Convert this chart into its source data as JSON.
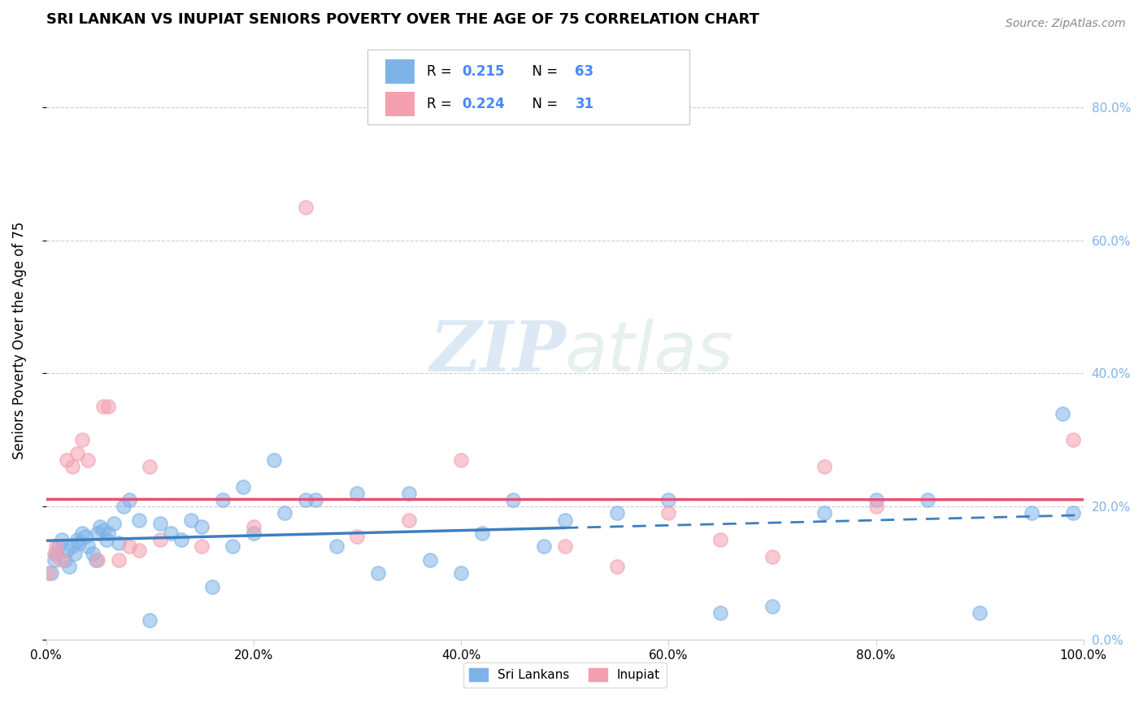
{
  "title": "SRI LANKAN VS INUPIAT SENIORS POVERTY OVER THE AGE OF 75 CORRELATION CHART",
  "source": "Source: ZipAtlas.com",
  "ylabel": "Seniors Poverty Over the Age of 75",
  "watermark_zip": "ZIP",
  "watermark_atlas": "atlas",
  "sri_lankan_R": 0.215,
  "sri_lankan_N": 63,
  "inupiat_R": 0.224,
  "inupiat_N": 31,
  "sri_lankan_color": "#7EB3E8",
  "inupiat_color": "#F4A0B0",
  "trend_sri_lankan_color": "#3E7EC0",
  "trend_inupiat_color": "#E85070",
  "stat_color": "#4488FF",
  "background_color": "#ffffff",
  "sri_lankan_x": [
    0.5,
    0.8,
    1.0,
    1.2,
    1.5,
    1.8,
    2.0,
    2.2,
    2.5,
    2.8,
    3.0,
    3.2,
    3.5,
    3.8,
    4.0,
    4.5,
    4.8,
    5.0,
    5.2,
    5.5,
    5.8,
    6.0,
    6.5,
    7.0,
    7.5,
    8.0,
    9.0,
    10.0,
    11.0,
    12.0,
    13.0,
    14.0,
    15.0,
    16.0,
    17.0,
    18.0,
    19.0,
    20.0,
    22.0,
    23.0,
    25.0,
    26.0,
    28.0,
    30.0,
    32.0,
    35.0,
    37.0,
    40.0,
    42.0,
    45.0,
    48.0,
    50.0,
    55.0,
    60.0,
    65.0,
    70.0,
    75.0,
    80.0,
    85.0,
    90.0,
    95.0,
    98.0,
    99.0
  ],
  "sri_lankan_y": [
    10.0,
    12.0,
    13.0,
    14.0,
    15.0,
    12.0,
    13.5,
    11.0,
    14.0,
    13.0,
    15.0,
    14.5,
    16.0,
    15.5,
    14.0,
    13.0,
    12.0,
    16.0,
    17.0,
    16.5,
    15.0,
    16.0,
    17.5,
    14.5,
    20.0,
    21.0,
    18.0,
    3.0,
    17.5,
    16.0,
    15.0,
    18.0,
    17.0,
    8.0,
    21.0,
    14.0,
    23.0,
    16.0,
    27.0,
    19.0,
    21.0,
    21.0,
    14.0,
    22.0,
    10.0,
    22.0,
    12.0,
    10.0,
    16.0,
    21.0,
    14.0,
    18.0,
    19.0,
    21.0,
    4.0,
    5.0,
    19.0,
    21.0,
    21.0,
    4.0,
    19.0,
    34.0,
    19.0
  ],
  "inupiat_x": [
    0.3,
    0.8,
    1.0,
    1.5,
    2.0,
    2.5,
    3.0,
    3.5,
    4.0,
    5.0,
    5.5,
    6.0,
    7.0,
    8.0,
    9.0,
    10.0,
    11.0,
    15.0,
    20.0,
    25.0,
    30.0,
    35.0,
    40.0,
    50.0,
    55.0,
    60.0,
    65.0,
    70.0,
    75.0,
    80.0,
    99.0
  ],
  "inupiat_y": [
    10.0,
    13.0,
    14.0,
    12.0,
    27.0,
    26.0,
    28.0,
    30.0,
    27.0,
    12.0,
    35.0,
    35.0,
    12.0,
    14.0,
    13.5,
    26.0,
    15.0,
    14.0,
    17.0,
    65.0,
    15.5,
    18.0,
    27.0,
    14.0,
    11.0,
    19.0,
    15.0,
    12.5,
    26.0,
    20.0,
    30.0
  ],
  "xlim": [
    0,
    100
  ],
  "ylim": [
    0,
    90
  ],
  "xticks": [
    0,
    20,
    40,
    60,
    80,
    100
  ],
  "xtick_labels": [
    "0.0%",
    "20.0%",
    "40.0%",
    "60.0%",
    "80.0%",
    "100.0%"
  ],
  "yticks": [
    0,
    20,
    40,
    60,
    80
  ],
  "ytick_labels_right": [
    "0.0%",
    "20.0%",
    "40.0%",
    "60.0%",
    "80.0%"
  ],
  "legend_sri_label": "Sri Lankans",
  "legend_inp_label": "Inupiat"
}
